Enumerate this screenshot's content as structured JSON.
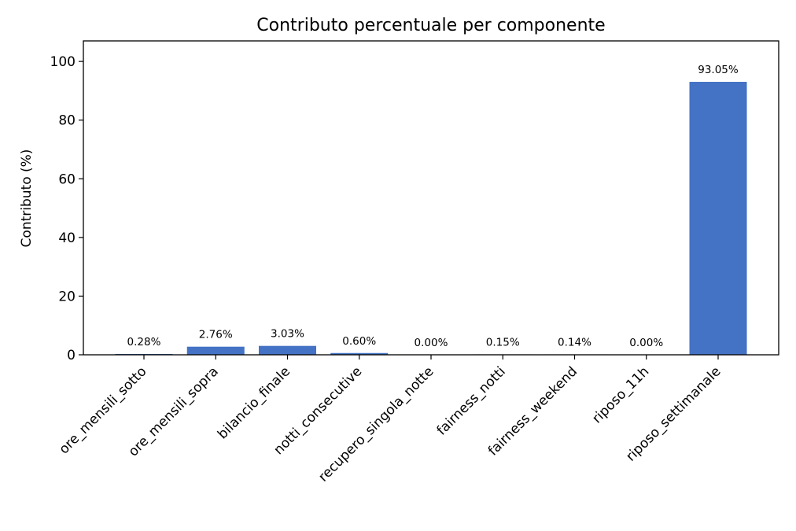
{
  "chart_data": {
    "type": "bar",
    "title": "Contributo percentuale per componente",
    "xlabel": "",
    "ylabel": "Contributo (%)",
    "ylim": [
      0,
      107
    ],
    "yticks": [
      0,
      20,
      40,
      60,
      80,
      100
    ],
    "grid": false,
    "categories": [
      "ore_mensili_sotto",
      "ore_mensili_sopra",
      "bilancio_finale",
      "notti_consecutive",
      "recupero_singola_notte",
      "fairness_notti",
      "fairness_weekend",
      "riposo_11h",
      "riposo_settimanale"
    ],
    "values": [
      0.28,
      2.76,
      3.03,
      0.6,
      0.0,
      0.15,
      0.14,
      0.0,
      93.05
    ],
    "data_labels": [
      "0.28%",
      "2.76%",
      "3.03%",
      "0.60%",
      "0.00%",
      "0.15%",
      "0.14%",
      "0.00%",
      "93.05%"
    ],
    "bar_color": "#4472c4"
  }
}
